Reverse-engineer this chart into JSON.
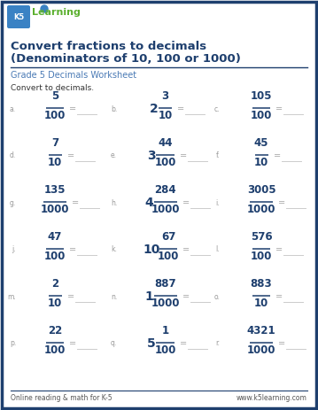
{
  "title_line1": "Convert fractions to decimals",
  "title_line2": "(Denominators of 10, 100 or 1000)",
  "subtitle": "Grade 5 Decimals Worksheet",
  "instruction": "Convert to decimals.",
  "border_color": "#1e3f6e",
  "title_color": "#1e3f6e",
  "subtitle_color": "#4a7ab5",
  "frac_color": "#1e3f6e",
  "label_color": "#999999",
  "footer_left": "Online reading & math for K-5",
  "footer_right": "www.k5learning.com",
  "problems": [
    {
      "col": 0,
      "row": 0,
      "whole": "",
      "num": "5",
      "den": "100"
    },
    {
      "col": 1,
      "row": 0,
      "whole": "2",
      "num": "3",
      "den": "10"
    },
    {
      "col": 2,
      "row": 0,
      "whole": "",
      "num": "105",
      "den": "100"
    },
    {
      "col": 0,
      "row": 1,
      "whole": "",
      "num": "7",
      "den": "10"
    },
    {
      "col": 1,
      "row": 1,
      "whole": "3",
      "num": "44",
      "den": "100"
    },
    {
      "col": 2,
      "row": 1,
      "whole": "",
      "num": "45",
      "den": "10"
    },
    {
      "col": 0,
      "row": 2,
      "whole": "",
      "num": "135",
      "den": "1000"
    },
    {
      "col": 1,
      "row": 2,
      "whole": "4",
      "num": "284",
      "den": "1000"
    },
    {
      "col": 2,
      "row": 2,
      "whole": "",
      "num": "3005",
      "den": "1000"
    },
    {
      "col": 0,
      "row": 3,
      "whole": "",
      "num": "47",
      "den": "100"
    },
    {
      "col": 1,
      "row": 3,
      "whole": "10",
      "num": "67",
      "den": "100"
    },
    {
      "col": 2,
      "row": 3,
      "whole": "",
      "num": "576",
      "den": "100"
    },
    {
      "col": 0,
      "row": 4,
      "whole": "",
      "num": "2",
      "den": "10"
    },
    {
      "col": 1,
      "row": 4,
      "whole": "1",
      "num": "887",
      "den": "1000"
    },
    {
      "col": 2,
      "row": 4,
      "whole": "",
      "num": "883",
      "den": "10"
    },
    {
      "col": 0,
      "row": 5,
      "whole": "",
      "num": "22",
      "den": "100"
    },
    {
      "col": 1,
      "row": 5,
      "whole": "5",
      "num": "1",
      "den": "100"
    },
    {
      "col": 2,
      "row": 5,
      "whole": "",
      "num": "4321",
      "den": "1000"
    }
  ],
  "background_color": "#ffffff",
  "figw": 3.59,
  "figh": 4.63,
  "dpi": 100
}
